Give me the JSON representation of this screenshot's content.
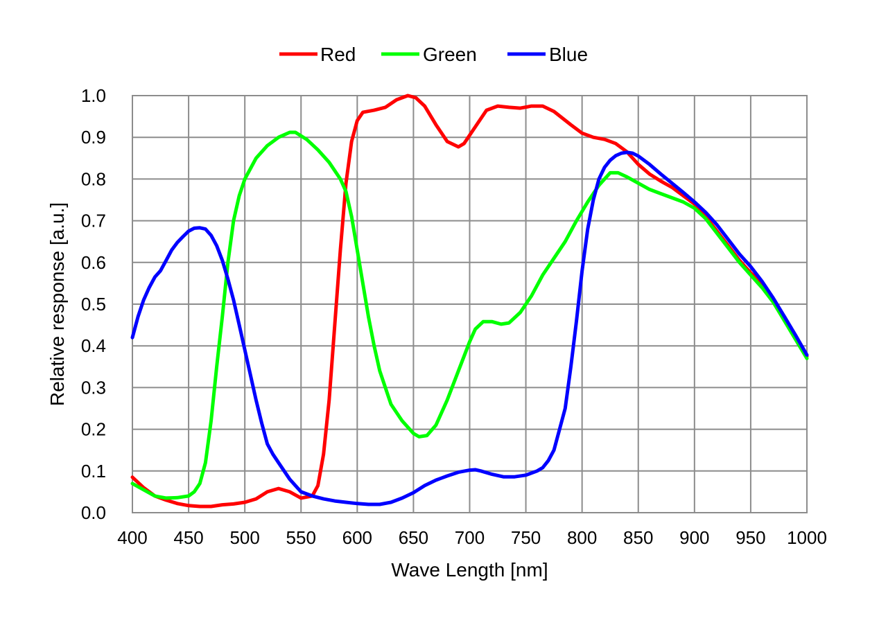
{
  "chart_data": {
    "type": "line",
    "xlabel": "Wave Length [nm]",
    "ylabel": "Relative response [a.u.]",
    "xlim": [
      400,
      1000
    ],
    "ylim": [
      0,
      1.0
    ],
    "xticks": [
      "400",
      "450",
      "500",
      "550",
      "600",
      "650",
      "700",
      "750",
      "800",
      "850",
      "900",
      "950",
      "1000"
    ],
    "yticks": [
      "0.0",
      "0.1",
      "0.2",
      "0.3",
      "0.4",
      "0.5",
      "0.6",
      "0.7",
      "0.8",
      "0.9",
      "1.0"
    ],
    "grid": true,
    "legend_position": "top-center",
    "series": [
      {
        "name": "Red",
        "color": "#ff0000",
        "points": [
          [
            400,
            0.085
          ],
          [
            410,
            0.06
          ],
          [
            420,
            0.04
          ],
          [
            430,
            0.03
          ],
          [
            440,
            0.022
          ],
          [
            450,
            0.017
          ],
          [
            460,
            0.015
          ],
          [
            470,
            0.015
          ],
          [
            480,
            0.019
          ],
          [
            490,
            0.021
          ],
          [
            500,
            0.025
          ],
          [
            510,
            0.033
          ],
          [
            520,
            0.05
          ],
          [
            530,
            0.058
          ],
          [
            540,
            0.05
          ],
          [
            550,
            0.035
          ],
          [
            560,
            0.04
          ],
          [
            565,
            0.065
          ],
          [
            570,
            0.14
          ],
          [
            575,
            0.27
          ],
          [
            580,
            0.45
          ],
          [
            585,
            0.63
          ],
          [
            590,
            0.79
          ],
          [
            595,
            0.89
          ],
          [
            600,
            0.94
          ],
          [
            605,
            0.96
          ],
          [
            615,
            0.965
          ],
          [
            625,
            0.972
          ],
          [
            635,
            0.99
          ],
          [
            645,
            1.0
          ],
          [
            652,
            0.995
          ],
          [
            660,
            0.975
          ],
          [
            670,
            0.93
          ],
          [
            680,
            0.89
          ],
          [
            690,
            0.877
          ],
          [
            695,
            0.885
          ],
          [
            705,
            0.925
          ],
          [
            715,
            0.965
          ],
          [
            725,
            0.975
          ],
          [
            735,
            0.972
          ],
          [
            745,
            0.97
          ],
          [
            755,
            0.975
          ],
          [
            765,
            0.975
          ],
          [
            775,
            0.962
          ],
          [
            790,
            0.93
          ],
          [
            800,
            0.91
          ],
          [
            810,
            0.9
          ],
          [
            820,
            0.895
          ],
          [
            830,
            0.885
          ],
          [
            840,
            0.865
          ],
          [
            850,
            0.835
          ],
          [
            860,
            0.812
          ],
          [
            870,
            0.795
          ],
          [
            880,
            0.78
          ],
          [
            890,
            0.76
          ],
          [
            900,
            0.74
          ],
          [
            910,
            0.71
          ],
          [
            920,
            0.675
          ],
          [
            930,
            0.64
          ],
          [
            940,
            0.605
          ],
          [
            950,
            0.575
          ],
          [
            960,
            0.55
          ],
          [
            970,
            0.51
          ],
          [
            980,
            0.47
          ],
          [
            990,
            0.42
          ],
          [
            1000,
            0.375
          ]
        ]
      },
      {
        "name": "Green",
        "color": "#00ff00",
        "points": [
          [
            400,
            0.07
          ],
          [
            410,
            0.055
          ],
          [
            420,
            0.04
          ],
          [
            430,
            0.035
          ],
          [
            440,
            0.036
          ],
          [
            450,
            0.04
          ],
          [
            455,
            0.05
          ],
          [
            460,
            0.07
          ],
          [
            465,
            0.12
          ],
          [
            470,
            0.22
          ],
          [
            475,
            0.35
          ],
          [
            480,
            0.47
          ],
          [
            485,
            0.6
          ],
          [
            490,
            0.7
          ],
          [
            495,
            0.76
          ],
          [
            500,
            0.8
          ],
          [
            510,
            0.85
          ],
          [
            520,
            0.88
          ],
          [
            530,
            0.9
          ],
          [
            540,
            0.912
          ],
          [
            545,
            0.912
          ],
          [
            555,
            0.895
          ],
          [
            565,
            0.87
          ],
          [
            575,
            0.84
          ],
          [
            585,
            0.8
          ],
          [
            590,
            0.77
          ],
          [
            595,
            0.71
          ],
          [
            600,
            0.63
          ],
          [
            605,
            0.55
          ],
          [
            610,
            0.47
          ],
          [
            615,
            0.4
          ],
          [
            620,
            0.34
          ],
          [
            625,
            0.3
          ],
          [
            630,
            0.26
          ],
          [
            640,
            0.22
          ],
          [
            650,
            0.19
          ],
          [
            655,
            0.182
          ],
          [
            662,
            0.185
          ],
          [
            670,
            0.21
          ],
          [
            680,
            0.27
          ],
          [
            690,
            0.34
          ],
          [
            700,
            0.41
          ],
          [
            705,
            0.44
          ],
          [
            712,
            0.458
          ],
          [
            720,
            0.458
          ],
          [
            728,
            0.452
          ],
          [
            735,
            0.455
          ],
          [
            745,
            0.48
          ],
          [
            755,
            0.52
          ],
          [
            765,
            0.57
          ],
          [
            775,
            0.61
          ],
          [
            785,
            0.65
          ],
          [
            795,
            0.7
          ],
          [
            805,
            0.745
          ],
          [
            815,
            0.785
          ],
          [
            825,
            0.815
          ],
          [
            832,
            0.815
          ],
          [
            840,
            0.805
          ],
          [
            850,
            0.79
          ],
          [
            860,
            0.775
          ],
          [
            870,
            0.765
          ],
          [
            880,
            0.755
          ],
          [
            890,
            0.745
          ],
          [
            900,
            0.73
          ],
          [
            910,
            0.705
          ],
          [
            920,
            0.67
          ],
          [
            930,
            0.635
          ],
          [
            940,
            0.6
          ],
          [
            950,
            0.57
          ],
          [
            960,
            0.54
          ],
          [
            970,
            0.505
          ],
          [
            980,
            0.46
          ],
          [
            990,
            0.415
          ],
          [
            1000,
            0.37
          ]
        ]
      },
      {
        "name": "Blue",
        "color": "#0000ff",
        "points": [
          [
            400,
            0.42
          ],
          [
            405,
            0.47
          ],
          [
            410,
            0.51
          ],
          [
            415,
            0.54
          ],
          [
            420,
            0.565
          ],
          [
            425,
            0.58
          ],
          [
            430,
            0.605
          ],
          [
            435,
            0.63
          ],
          [
            440,
            0.648
          ],
          [
            445,
            0.662
          ],
          [
            450,
            0.675
          ],
          [
            455,
            0.682
          ],
          [
            460,
            0.683
          ],
          [
            465,
            0.68
          ],
          [
            470,
            0.665
          ],
          [
            475,
            0.64
          ],
          [
            480,
            0.605
          ],
          [
            485,
            0.56
          ],
          [
            490,
            0.51
          ],
          [
            495,
            0.45
          ],
          [
            500,
            0.39
          ],
          [
            505,
            0.33
          ],
          [
            510,
            0.27
          ],
          [
            515,
            0.215
          ],
          [
            520,
            0.165
          ],
          [
            525,
            0.14
          ],
          [
            530,
            0.12
          ],
          [
            540,
            0.08
          ],
          [
            550,
            0.05
          ],
          [
            560,
            0.04
          ],
          [
            570,
            0.033
          ],
          [
            580,
            0.028
          ],
          [
            590,
            0.025
          ],
          [
            600,
            0.022
          ],
          [
            610,
            0.02
          ],
          [
            620,
            0.02
          ],
          [
            630,
            0.025
          ],
          [
            640,
            0.035
          ],
          [
            650,
            0.048
          ],
          [
            660,
            0.065
          ],
          [
            670,
            0.078
          ],
          [
            680,
            0.088
          ],
          [
            690,
            0.097
          ],
          [
            700,
            0.102
          ],
          [
            705,
            0.103
          ],
          [
            710,
            0.1
          ],
          [
            720,
            0.092
          ],
          [
            730,
            0.086
          ],
          [
            740,
            0.086
          ],
          [
            750,
            0.09
          ],
          [
            760,
            0.1
          ],
          [
            765,
            0.108
          ],
          [
            770,
            0.125
          ],
          [
            775,
            0.15
          ],
          [
            780,
            0.2
          ],
          [
            785,
            0.25
          ],
          [
            790,
            0.35
          ],
          [
            795,
            0.46
          ],
          [
            800,
            0.58
          ],
          [
            805,
            0.68
          ],
          [
            810,
            0.75
          ],
          [
            815,
            0.8
          ],
          [
            820,
            0.828
          ],
          [
            825,
            0.845
          ],
          [
            830,
            0.856
          ],
          [
            835,
            0.862
          ],
          [
            840,
            0.864
          ],
          [
            845,
            0.862
          ],
          [
            850,
            0.855
          ],
          [
            860,
            0.835
          ],
          [
            870,
            0.812
          ],
          [
            880,
            0.79
          ],
          [
            890,
            0.768
          ],
          [
            900,
            0.745
          ],
          [
            910,
            0.72
          ],
          [
            920,
            0.69
          ],
          [
            930,
            0.655
          ],
          [
            940,
            0.62
          ],
          [
            950,
            0.59
          ],
          [
            960,
            0.555
          ],
          [
            970,
            0.515
          ],
          [
            980,
            0.47
          ],
          [
            990,
            0.425
          ],
          [
            1000,
            0.378
          ]
        ]
      }
    ]
  }
}
